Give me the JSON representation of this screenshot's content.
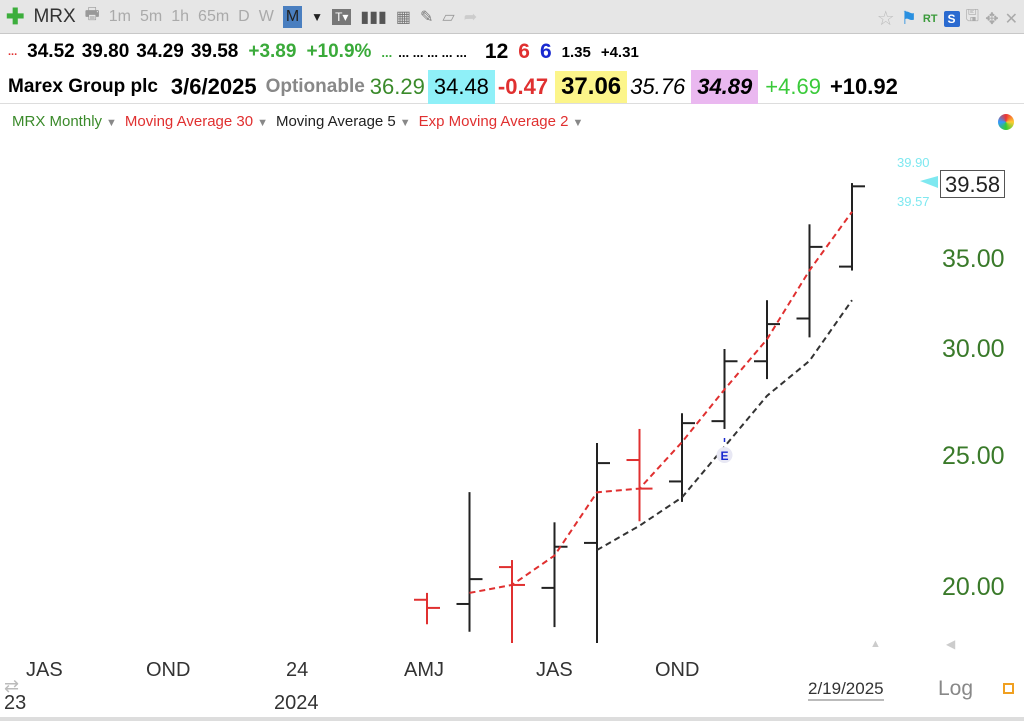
{
  "toolbar": {
    "symbol": "MRX",
    "timeframes": [
      "1m",
      "5m",
      "1h",
      "65m",
      "D",
      "W",
      "M"
    ],
    "active_timeframe": "M",
    "icons": [
      "plus-icon",
      "print-icon",
      "dropdown-icon",
      "text-icon",
      "bar-chart-icon",
      "calculator-icon",
      "pencil-icon",
      "notes-icon",
      "share-icon",
      "star-icon",
      "flag-icon",
      "rt-icon",
      "s-icon",
      "save-icon",
      "move-icon",
      "close-icon"
    ],
    "rt": "RT",
    "s": "S"
  },
  "quote": {
    "dots": "...",
    "open": "34.52",
    "high": "39.80",
    "low": "34.29",
    "close": "39.58",
    "change": "+3.89",
    "pct": "+10.9%",
    "dots2": "...",
    "ellipses": "... ... ... ... ...",
    "v1": "12",
    "v2": "6",
    "v3": "6",
    "v4": "1.35",
    "v5": "+4.31"
  },
  "info": {
    "name": "Marex Group plc",
    "date": "3/6/2025",
    "optionable": "Optionable",
    "f1": "36.29",
    "f2": "34.48",
    "f3": "-0.47",
    "f4": "37.06",
    "f5": "35.76",
    "f6": "34.89",
    "f7": "+4.69",
    "f8": "+10.92"
  },
  "legend": [
    {
      "label": "MRX Monthly",
      "color": "#3a8a2a"
    },
    {
      "label": "Moving Average 30",
      "color": "#e03030"
    },
    {
      "label": "Moving Average 5",
      "color": "#222222"
    },
    {
      "label": "Exp Moving Average 2",
      "color": "#e03030"
    }
  ],
  "price_tag": {
    "last": "39.58",
    "high": "39.90",
    "low": "39.57"
  },
  "footer": {
    "date": "2/19/2025",
    "scale": "Log"
  },
  "chart_data": {
    "type": "ohlc",
    "log_scale": true,
    "ylim": [
      18,
      40.5
    ],
    "y_ticks": [
      "20.00",
      "25.00",
      "30.00",
      "35.00"
    ],
    "x_tick_labels": [
      {
        "label": "JAS"
      },
      {
        "label": "OND"
      },
      {
        "label": "24"
      },
      {
        "label": "AMJ"
      },
      {
        "label": "JAS"
      },
      {
        "label": "OND"
      }
    ],
    "year_labels": [
      "23",
      "2024"
    ],
    "bars": [
      {
        "month": "2024-04",
        "open": 19.57,
        "high": 19.8,
        "low": 18.77,
        "close": 19.3,
        "color": "#e03030"
      },
      {
        "month": "2024-05",
        "open": 19.43,
        "high": 23.51,
        "low": 18.53,
        "close": 20.27,
        "color": "#222222"
      },
      {
        "month": "2024-06",
        "open": 20.69,
        "high": 20.94,
        "low": 18.18,
        "close": 20.07,
        "color": "#e03030"
      },
      {
        "month": "2024-07",
        "open": 19.97,
        "high": 22.33,
        "low": 18.68,
        "close": 21.42,
        "color": "#222222"
      },
      {
        "month": "2024-08",
        "open": 21.56,
        "high": 25.56,
        "low": 18.18,
        "close": 24.7,
        "color": "#222222"
      },
      {
        "month": "2024-09",
        "open": 24.83,
        "high": 26.18,
        "low": 22.37,
        "close": 23.65,
        "color": "#e03030"
      },
      {
        "month": "2024-10",
        "open": 23.94,
        "high": 26.89,
        "low": 23.12,
        "close": 26.44,
        "color": "#222222"
      },
      {
        "month": "2024-11",
        "open": 26.53,
        "high": 30.0,
        "low": 26.18,
        "close": 29.38,
        "color": "#222222"
      },
      {
        "month": "2024-12",
        "open": 29.38,
        "high": 32.6,
        "low": 28.5,
        "close": 31.3,
        "color": "#222222"
      },
      {
        "month": "2025-01",
        "open": 31.6,
        "high": 37.1,
        "low": 30.6,
        "close": 35.7,
        "color": "#222222"
      },
      {
        "month": "2025-02",
        "open": 34.52,
        "high": 39.8,
        "low": 34.29,
        "close": 39.58,
        "color": "#222222"
      }
    ],
    "series": [
      {
        "name": "Moving Average 30",
        "color": "#e03030",
        "start_index": 1,
        "values": [
          19.8,
          20.07,
          21.1,
          23.5,
          23.65,
          25.6,
          28.0,
          30.5,
          34.3,
          37.9
        ]
      },
      {
        "name": "Moving Average 5",
        "color": "#333333",
        "start_index": 4,
        "values": [
          21.3,
          22.2,
          23.3,
          25.4,
          27.7,
          29.4,
          32.6
        ]
      }
    ],
    "earnings_marker": {
      "index": 7,
      "label": "E"
    }
  }
}
